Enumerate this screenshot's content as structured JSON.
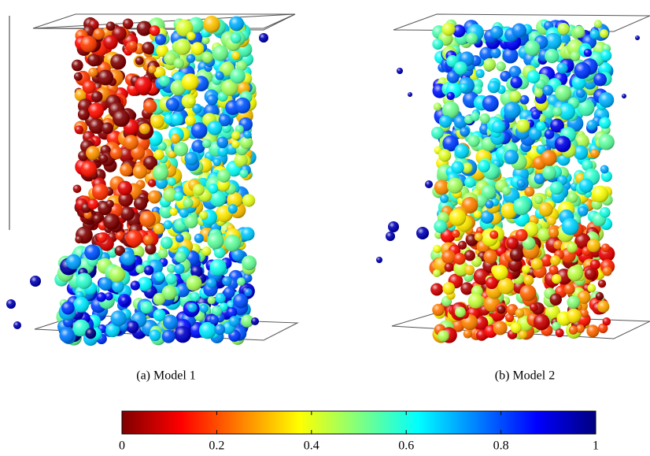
{
  "panels": [
    {
      "caption": "(a) Model 1"
    },
    {
      "caption": "(b) Model 2"
    }
  ],
  "colorbar": {
    "lim": [
      0,
      1
    ],
    "ticks": [
      0,
      0.2,
      0.4,
      0.6,
      0.8,
      1
    ],
    "colormap": "jet",
    "reversed": true
  }
}
